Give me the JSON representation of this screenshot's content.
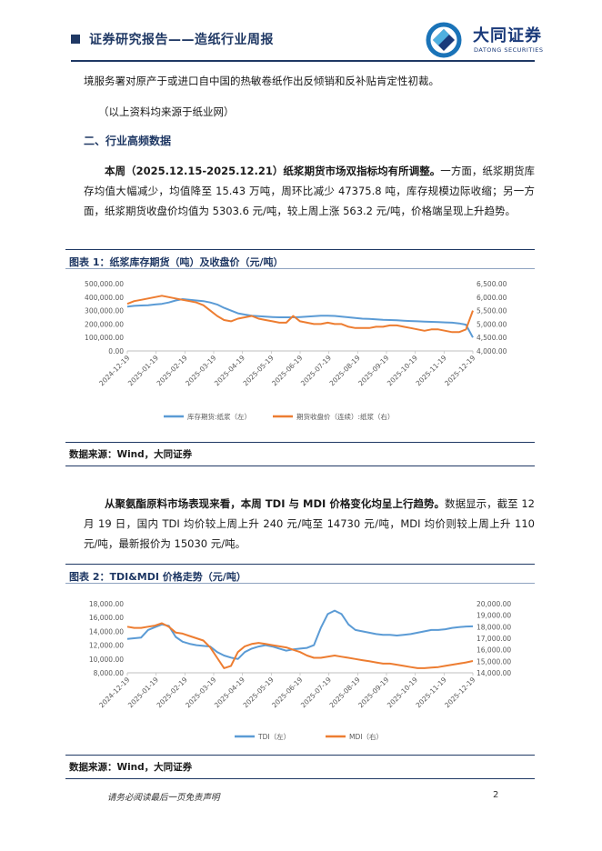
{
  "header": {
    "title": "证券研究报告——造纸行业周报",
    "logo_cn": "大同证券",
    "logo_en": "DATONG SECURITIES"
  },
  "body": {
    "para1": "境服务署对原产于或进口自中国的热敏卷纸作出反倾销和反补贴肯定性初裁。",
    "source_note": "（以上资料均来源于纸业网）",
    "section2": "二、行业高频数据",
    "para2_bold": "本周（2025.12.15-2025.12.21）纸浆期货市场双指标均有所调整。",
    "para2_rest": "一方面，纸浆期货库存均值大幅减少，均值降至 15.43 万吨，周环比减少 47375.8 吨，库存规模边际收缩；另一方面，纸浆期货收盘价均值为 5303.6 元/吨，较上周上涨 563.2 元/吨，价格端呈现上升趋势。",
    "para3_bold": "从聚氨酯原料市场表现来看，本周 TDI 与 MDI 价格变化均呈上行趋势。",
    "para3_rest": "数据显示，截至 12 月 19 日，国内 TDI 均价较上周上升 240 元/吨至 14730 元/吨，MDI 均价则较上周上升 110 元/吨，最新报价为 15030 元/吨。"
  },
  "figure1": {
    "title": "图表 1：纸浆库存期货（吨）及收盘价（元/吨）",
    "source": "数据来源：Wind，大同证券"
  },
  "figure2": {
    "title": "图表 2：TDI&MDI 价格走势（元/吨）",
    "source": "数据来源：Wind，大同证券"
  },
  "footer": {
    "disclaimer": "请务必阅读最后一页免责声明",
    "page": "2"
  },
  "chart_data": [
    {
      "type": "line",
      "title": "",
      "x_ticks": [
        "2024-12-19",
        "2025-01-19",
        "2025-02-19",
        "2025-03-19",
        "2025-04-19",
        "2025-05-19",
        "2025-06-19",
        "2025-07-19",
        "2025-08-19",
        "2025-09-19",
        "2025-10-19",
        "2025-11-19",
        "2025-12-19"
      ],
      "y_left": {
        "ticks": [
          "0.00",
          "100,000.00",
          "200,000.00",
          "300,000.00",
          "400,000.00",
          "500,000.00"
        ],
        "range": [
          0,
          500000
        ]
      },
      "y_right": {
        "ticks": [
          "4,000.00",
          "4,500.00",
          "5,000.00",
          "5,500.00",
          "6,000.00",
          "6,500.00"
        ],
        "range": [
          4000,
          6500
        ]
      },
      "series": [
        {
          "name": "库存期货:纸浆（左）",
          "axis": "left",
          "color": "#5b9bd5",
          "values": [
            330000,
            335000,
            338000,
            340000,
            345000,
            350000,
            360000,
            375000,
            385000,
            380000,
            375000,
            370000,
            360000,
            345000,
            320000,
            300000,
            280000,
            270000,
            262000,
            258000,
            255000,
            252000,
            250000,
            250000,
            250000,
            252000,
            255000,
            258000,
            262000,
            262000,
            260000,
            255000,
            250000,
            245000,
            240000,
            238000,
            235000,
            232000,
            230000,
            228000,
            225000,
            222000,
            220000,
            218000,
            216000,
            214000,
            212000,
            210000,
            205000,
            195000,
            100000
          ]
        },
        {
          "name": "期货收盘价（连续）:纸浆（右）",
          "axis": "right",
          "color": "#ed7d31",
          "values": [
            5750,
            5850,
            5900,
            5950,
            6000,
            6050,
            6000,
            5950,
            5900,
            5850,
            5800,
            5700,
            5500,
            5300,
            5150,
            5100,
            5200,
            5250,
            5300,
            5200,
            5150,
            5100,
            5050,
            5050,
            5300,
            5100,
            5050,
            5000,
            5000,
            5050,
            5000,
            5000,
            4900,
            4850,
            4850,
            4850,
            4900,
            4900,
            4950,
            4950,
            4900,
            4850,
            4800,
            4750,
            4800,
            4800,
            4750,
            4700,
            4700,
            4800,
            5500
          ]
        }
      ]
    },
    {
      "type": "line",
      "title": "",
      "x_ticks": [
        "2024-12-19",
        "2025-01-19",
        "2025-02-19",
        "2025-03-19",
        "2025-04-19",
        "2025-05-19",
        "2025-06-19",
        "2025-07-19",
        "2025-08-19",
        "2025-09-19",
        "2025-10-19",
        "2025-11-19",
        "2025-12-19"
      ],
      "y_left": {
        "ticks": [
          "8,000.00",
          "10,000.00",
          "12,000.00",
          "14,000.00",
          "16,000.00",
          "18,000.00"
        ],
        "range": [
          8000,
          18000
        ]
      },
      "y_right": {
        "ticks": [
          "14,000.00",
          "15,000.00",
          "16,000.00",
          "17,000.00",
          "18,000.00",
          "19,000.00",
          "20,000.00"
        ],
        "range": [
          14000,
          20000
        ]
      },
      "series": [
        {
          "name": "TDI（左）",
          "axis": "left",
          "color": "#5b9bd5",
          "values": [
            12900,
            13000,
            13100,
            14200,
            14600,
            15000,
            14800,
            13200,
            12500,
            12200,
            12000,
            11900,
            11800,
            11000,
            10500,
            10200,
            10000,
            11000,
            11500,
            11800,
            12000,
            11800,
            11500,
            11200,
            11400,
            11500,
            11600,
            12000,
            14500,
            16500,
            17000,
            16500,
            15000,
            14200,
            14000,
            13800,
            13600,
            13500,
            13500,
            13400,
            13500,
            13600,
            13800,
            14000,
            14200,
            14200,
            14300,
            14500,
            14600,
            14700,
            14730
          ]
        },
        {
          "name": "MDI（右）",
          "axis": "right",
          "color": "#ed7d31",
          "values": [
            18000,
            17900,
            17900,
            18000,
            18100,
            18300,
            18000,
            17500,
            17400,
            17200,
            17000,
            16800,
            16200,
            15300,
            14400,
            14600,
            15800,
            16300,
            16500,
            16600,
            16500,
            16400,
            16300,
            16200,
            16000,
            15800,
            15500,
            15300,
            15300,
            15400,
            15500,
            15400,
            15300,
            15200,
            15100,
            15000,
            14900,
            14800,
            14800,
            14700,
            14600,
            14500,
            14400,
            14400,
            14450,
            14500,
            14600,
            14700,
            14800,
            14900,
            15030
          ]
        }
      ]
    }
  ]
}
